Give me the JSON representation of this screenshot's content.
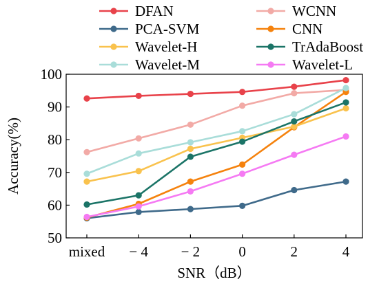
{
  "chart_data": {
    "type": "line",
    "categories": [
      "mixed",
      "− 4",
      "− 2",
      "0",
      "2",
      "4"
    ],
    "xlabel": "SNR（dB）",
    "ylabel": "Accuracy(%)",
    "ylim": [
      50,
      100
    ],
    "yticks": [
      50,
      60,
      70,
      80,
      90,
      100
    ],
    "grid": false,
    "legend_position": "top",
    "series": [
      {
        "name": "DFAN",
        "color": "#e8424a",
        "values": [
          92.6,
          93.4,
          94.0,
          94.6,
          96.2,
          98.2
        ]
      },
      {
        "name": "WCNN",
        "color": "#f2aaa6",
        "values": [
          76.2,
          80.4,
          84.6,
          90.4,
          94.2,
          95.2
        ]
      },
      {
        "name": "PCA-SVM",
        "color": "#3f6a8a",
        "values": [
          56.0,
          57.9,
          58.8,
          59.8,
          64.6,
          67.2
        ]
      },
      {
        "name": "CNN",
        "color": "#f5820d",
        "values": [
          56.2,
          60.4,
          67.2,
          72.4,
          83.8,
          94.6
        ]
      },
      {
        "name": "Wavelet-H",
        "color": "#f9c24d",
        "values": [
          67.2,
          70.4,
          77.2,
          80.6,
          84.0,
          89.6
        ]
      },
      {
        "name": "TrAdaBoost",
        "color": "#1b7467",
        "values": [
          60.2,
          63.0,
          74.8,
          79.4,
          85.6,
          91.4
        ]
      },
      {
        "name": "Wavelet-M",
        "color": "#a9ddd9",
        "values": [
          69.6,
          75.8,
          79.2,
          82.6,
          87.8,
          95.8
        ]
      },
      {
        "name": "Wavelet-L",
        "color": "#f57af3",
        "values": [
          56.4,
          59.6,
          64.2,
          69.6,
          75.4,
          81.0
        ]
      }
    ]
  }
}
